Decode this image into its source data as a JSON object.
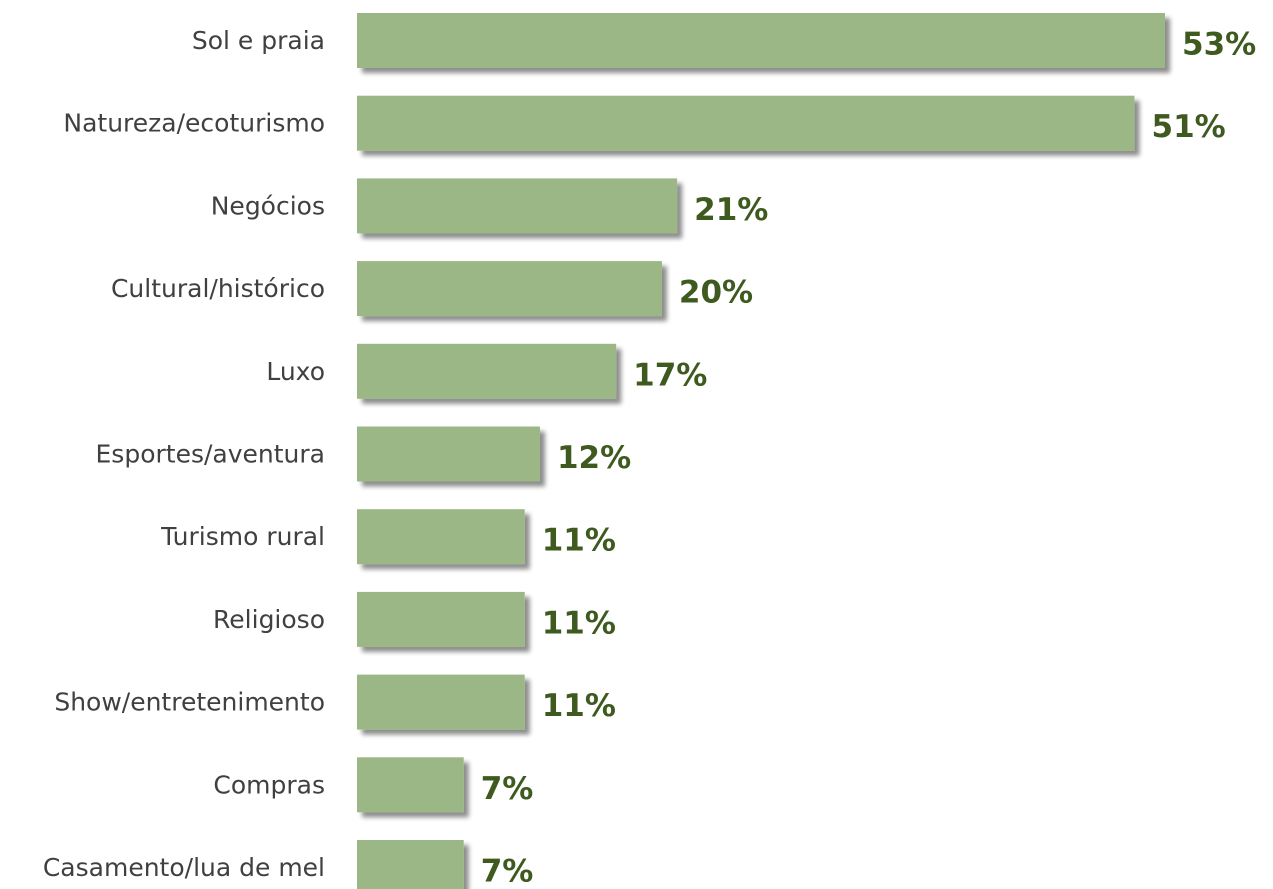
{
  "colors": {
    "bar": "#9cb786",
    "bar_shadow": "#bdbdbd",
    "value_label": "#3e5a1f",
    "category_label": "#404040"
  },
  "chart_data": {
    "type": "bar",
    "orientation": "horizontal",
    "title": "",
    "xlabel": "",
    "ylabel": "",
    "xlim": [
      0,
      53
    ],
    "grid": false,
    "legend": "none",
    "categories": [
      "Sol e praia",
      "Natureza/ecoturismo",
      "Negócios",
      "Cultural/histórico",
      "Luxo",
      "Esportes/aventura",
      "Turismo rural",
      "Religioso",
      "Show/entretenimento",
      "Compras",
      "Casamento/lua de mel"
    ],
    "values": [
      53,
      51,
      21,
      20,
      17,
      12,
      11,
      11,
      11,
      7,
      7
    ],
    "data_labels": [
      "53%",
      "51%",
      "21%",
      "20%",
      "17%",
      "12%",
      "11%",
      "11%",
      "11%",
      "7%",
      "7%"
    ]
  }
}
